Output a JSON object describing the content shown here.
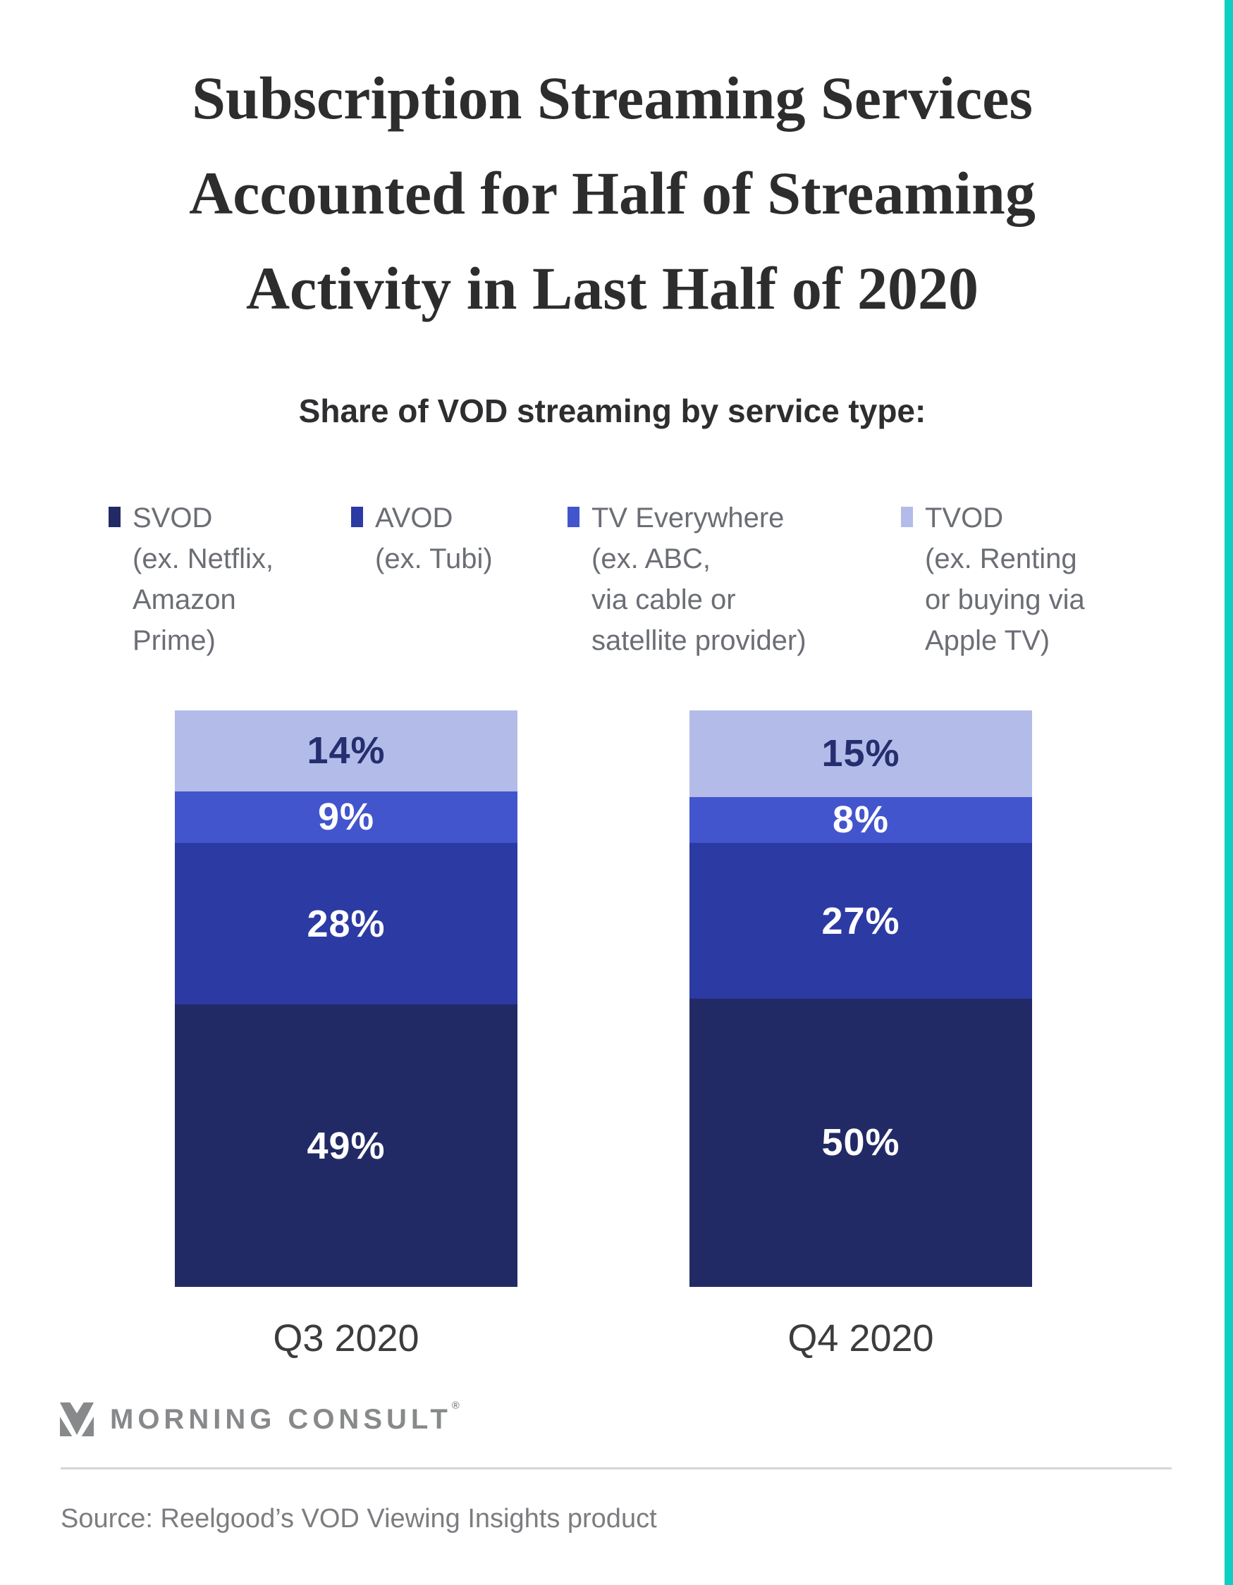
{
  "page": {
    "title": "Subscription Streaming Services\nAccounted for Half of Streaming\nActivity in Last Half of 2020",
    "subtitle": "Share of VOD streaming by service type:"
  },
  "legend": {
    "items": [
      {
        "name": "SVOD",
        "desc": "(ex. Netflix,\nAmazon\nPrime)",
        "color": "#222a66"
      },
      {
        "name": "AVOD",
        "desc": "(ex. Tubi)",
        "color": "#2c3aa4"
      },
      {
        "name": "TV Everywhere",
        "desc": "(ex. ABC,\nvia cable or\nsatellite provider)",
        "color": "#4355cd"
      },
      {
        "name": "TVOD",
        "desc": "(ex. Renting\nor buying via\nApple TV)",
        "color": "#b3bce9"
      }
    ]
  },
  "chart_data": {
    "type": "bar",
    "subtype": "stacked-percentage-column",
    "title": "Share of VOD streaming by service type:",
    "categories": [
      "Q3 2020",
      "Q4 2020"
    ],
    "series": [
      {
        "name": "SVOD (ex. Netflix, Amazon Prime)",
        "key": "SVOD",
        "values": [
          49,
          50
        ],
        "color": "#222a66",
        "label_color": "#ffffff"
      },
      {
        "name": "AVOD (ex. Tubi)",
        "key": "AVOD",
        "values": [
          28,
          27
        ],
        "color": "#2c3aa4",
        "label_color": "#ffffff"
      },
      {
        "name": "TV Everywhere (ex. ABC, via cable or satellite provider)",
        "key": "TV Everywhere",
        "values": [
          9,
          8
        ],
        "color": "#4355cd",
        "label_color": "#ffffff"
      },
      {
        "name": "TVOD (ex. Renting or buying via Apple TV)",
        "key": "TVOD",
        "values": [
          14,
          15
        ],
        "color": "#b3bce9",
        "label_color": "#262e6f"
      }
    ],
    "stack_order_top_to_bottom": [
      "TVOD",
      "TV Everywhere",
      "AVOD",
      "SVOD"
    ],
    "value_suffix": "%",
    "units": "percent of VOD streaming",
    "ylim": [
      0,
      100
    ],
    "grid": false,
    "legend_position": "top"
  },
  "footer": {
    "logo_text": "MORNING CONSULT",
    "logo_registered": "®",
    "source": "Source: Reelgood’s VOD Viewing Insights product"
  },
  "colors": {
    "accent_teal": "#10cfc2",
    "title_text": "#2d2d2d",
    "legend_text": "#6b6e74",
    "category_label_text": "#3c3c3e",
    "logo_gray": "#87898b",
    "divider_gray": "#d6d6d6",
    "source_gray": "#7b7d80",
    "background": "#ffffff"
  }
}
